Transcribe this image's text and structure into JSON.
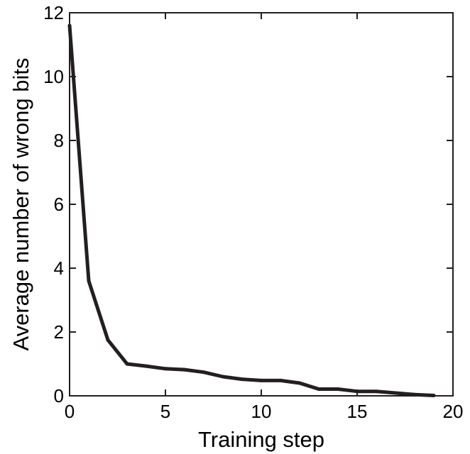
{
  "chart_data": {
    "type": "line",
    "title": "",
    "xlabel": "Training step",
    "ylabel": "Average number of wrong bits",
    "xlim": [
      0,
      20
    ],
    "ylim": [
      0,
      12
    ],
    "xticks": [
      0,
      5,
      10,
      15,
      20
    ],
    "yticks": [
      0,
      2,
      4,
      6,
      8,
      10,
      12
    ],
    "xtick_labels": [
      "0",
      "5",
      "10",
      "15",
      "20"
    ],
    "ytick_labels": [
      "0",
      "2",
      "4",
      "6",
      "8",
      "10",
      "12"
    ],
    "grid": false,
    "line_color": "#231f20",
    "x": [
      0,
      1,
      2,
      3,
      4,
      5,
      6,
      7,
      8,
      9,
      10,
      11,
      12,
      13,
      14,
      15,
      16,
      17,
      18,
      19
    ],
    "y": [
      11.6,
      3.6,
      1.75,
      1.0,
      0.93,
      0.85,
      0.82,
      0.74,
      0.6,
      0.52,
      0.48,
      0.48,
      0.4,
      0.21,
      0.21,
      0.14,
      0.14,
      0.09,
      0.04,
      0.01
    ]
  }
}
